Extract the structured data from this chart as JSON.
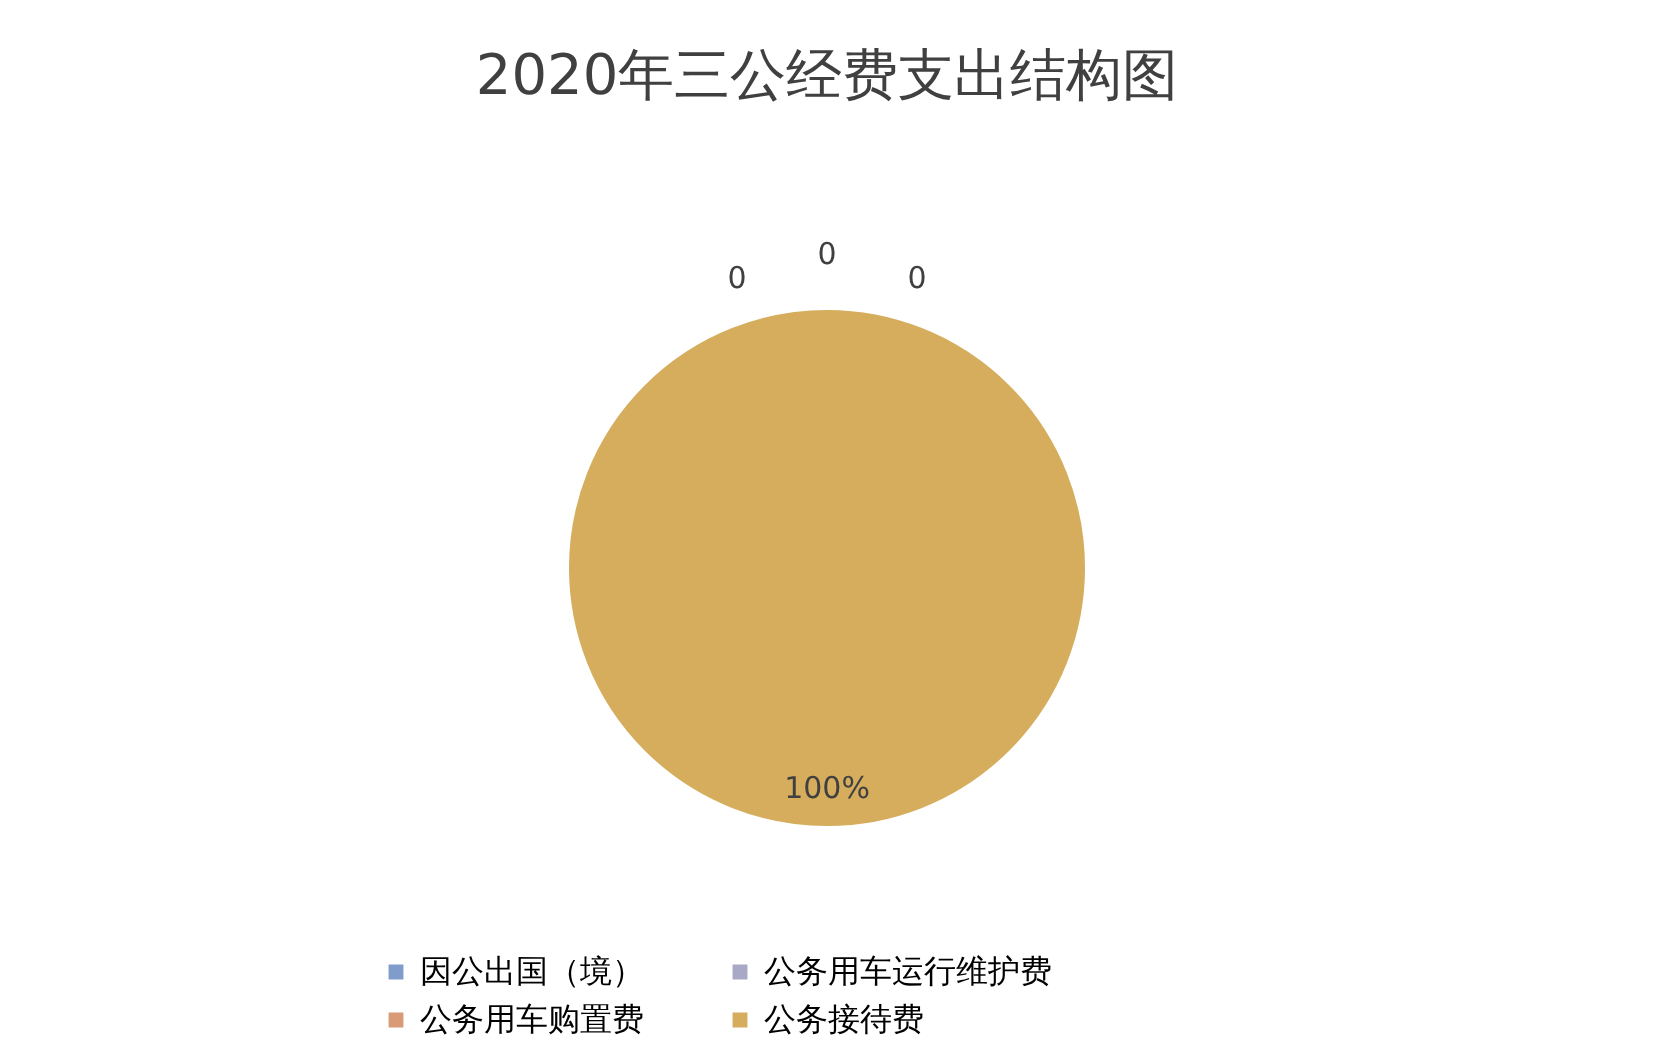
{
  "chart_data": {
    "type": "pie",
    "title": "2020年三公经费支出结构图",
    "categories": [
      "因公出国（境）",
      "公务用车购置费",
      "公务用车运行维护费",
      "公务接待费"
    ],
    "values": [
      0,
      0,
      0,
      100
    ],
    "colors": [
      "#7f9ccb",
      "#d99a76",
      "#a9a8c6",
      "#d5ad5c"
    ],
    "value_labels": [
      "0",
      "0",
      "0",
      "100%"
    ],
    "legend": "bottom"
  }
}
